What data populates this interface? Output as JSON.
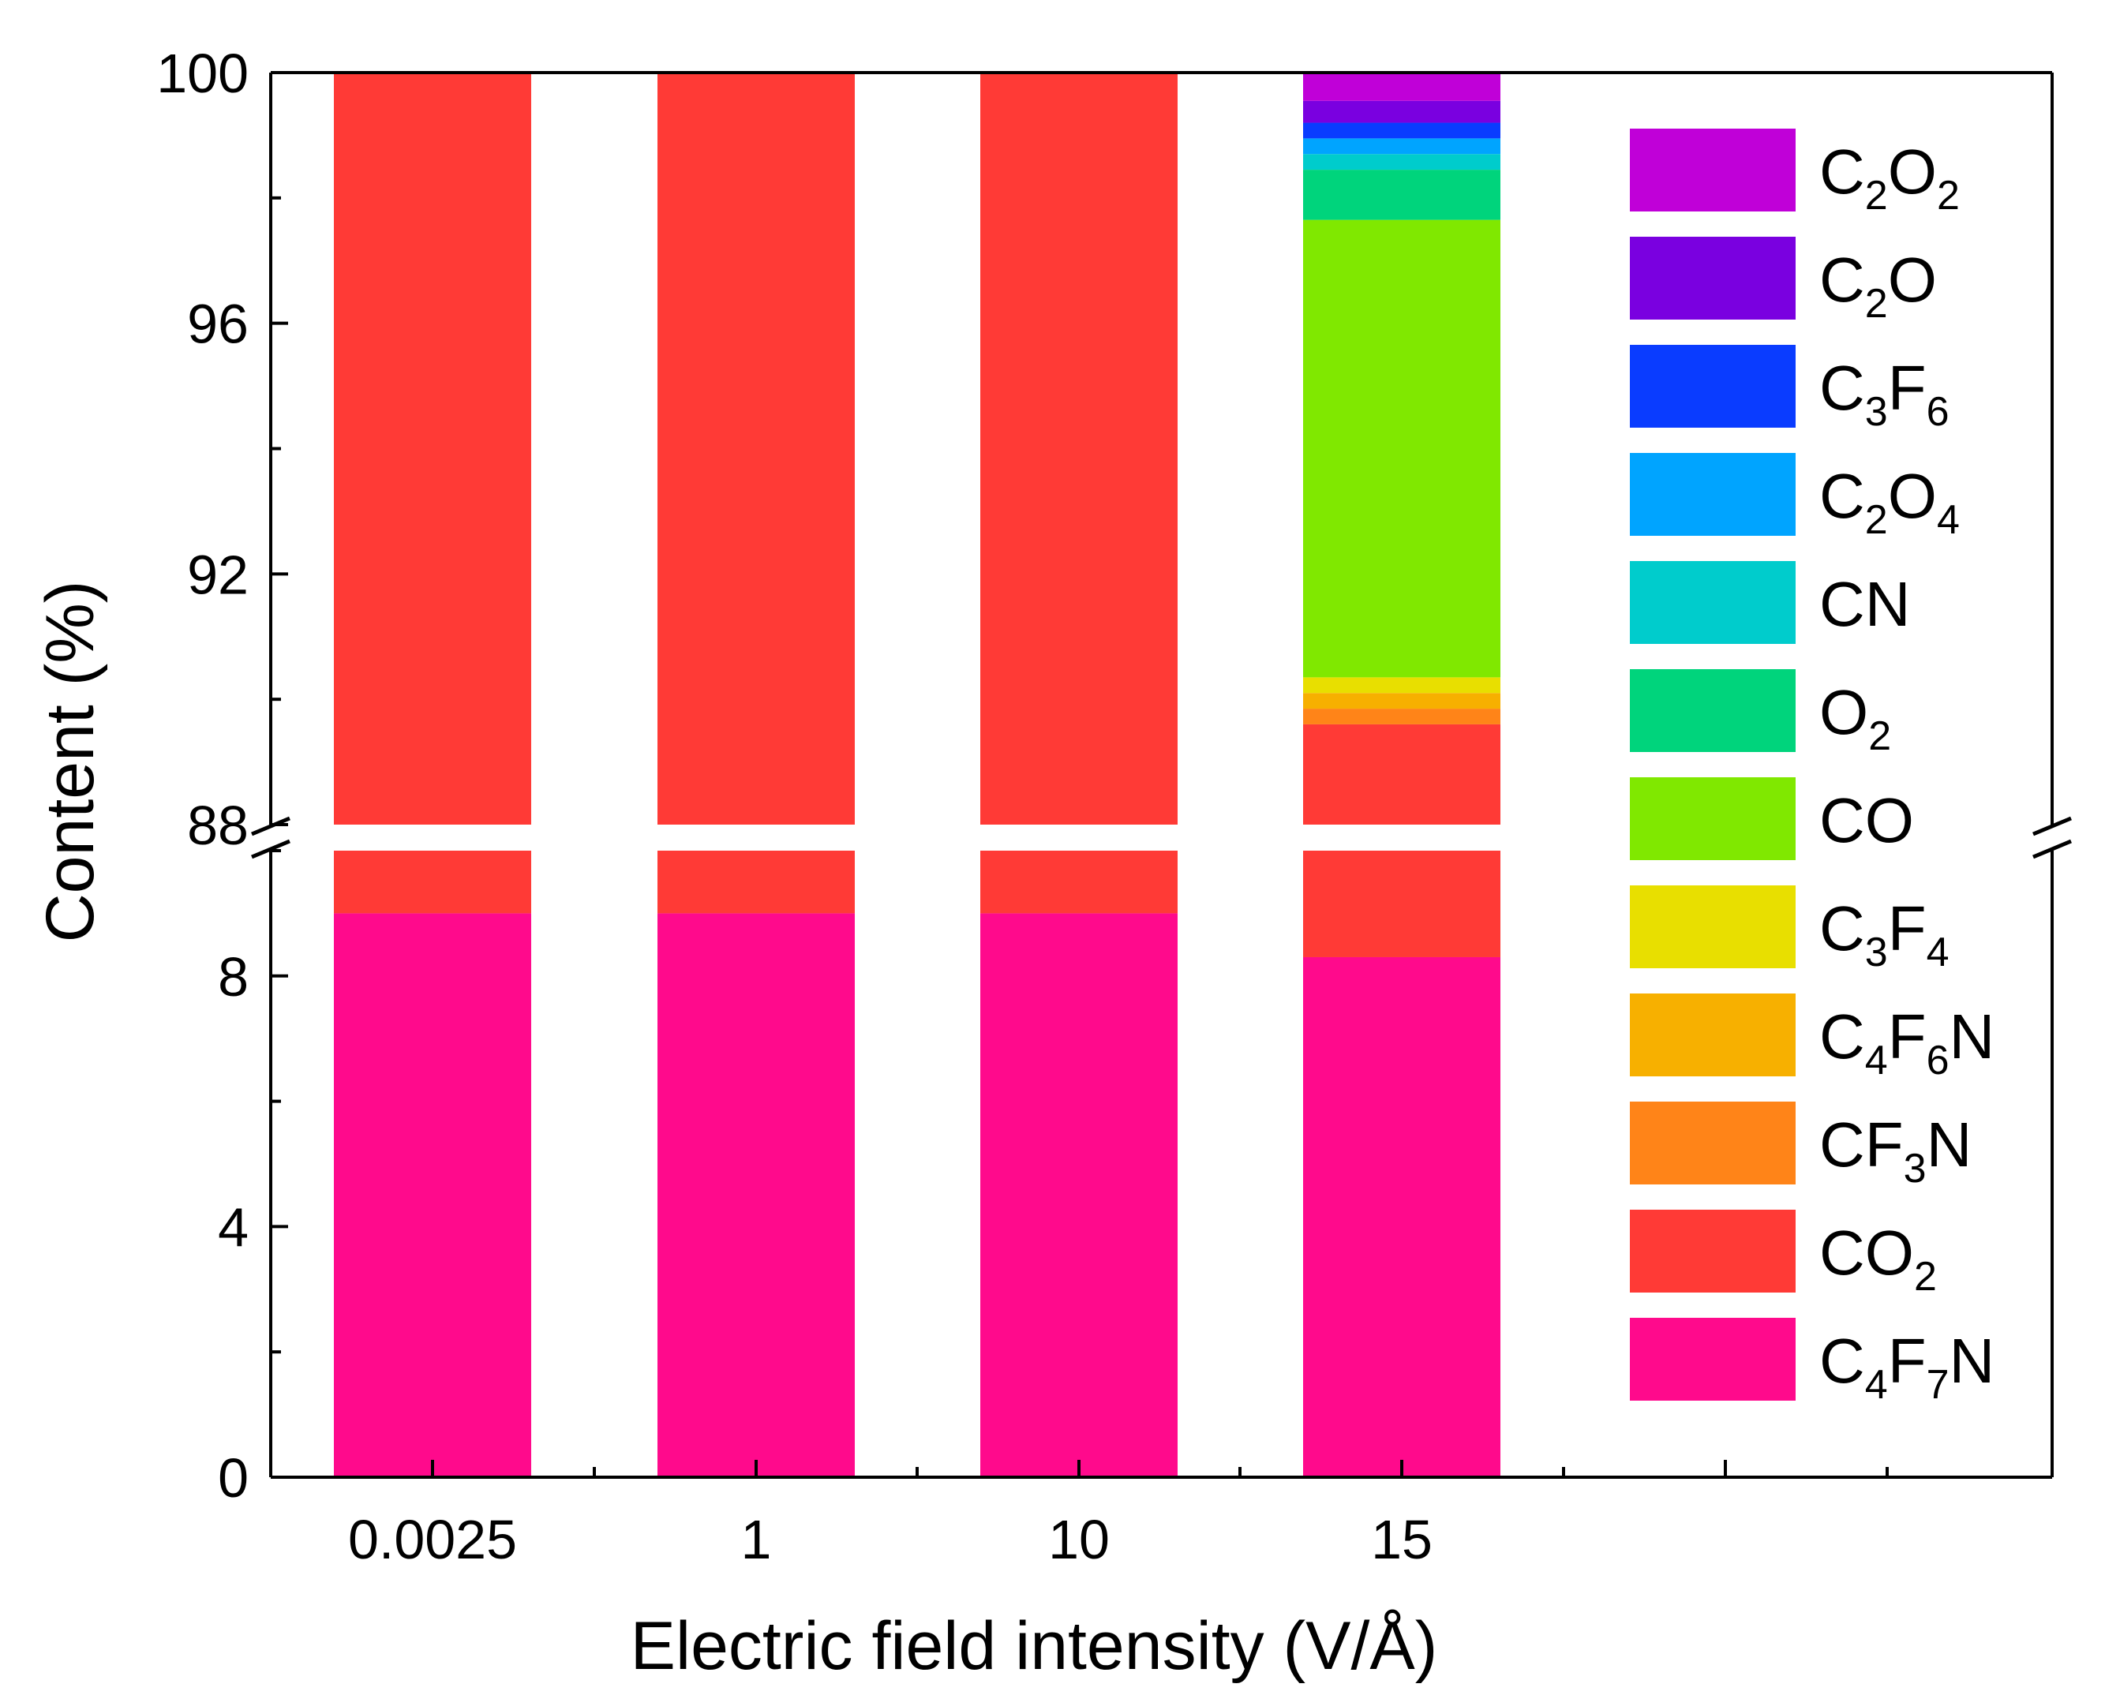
{
  "chart_data": {
    "type": "bar",
    "stacked": true,
    "broken_y_axis": true,
    "categories": [
      "0.0025",
      "1",
      "10",
      "15"
    ],
    "xlabel": "Electric field intensity (V/Å)",
    "ylabel": "Content (%)",
    "y_segments": [
      {
        "range": [
          0,
          10
        ],
        "ticks": [
          0,
          4,
          8
        ],
        "minor_step": 2
      },
      {
        "range": [
          88,
          100
        ],
        "ticks": [
          88,
          92,
          96,
          100
        ],
        "minor_step": 2
      }
    ],
    "legend_position": "right",
    "series": [
      {
        "name": "C4F7N",
        "parts": [
          {
            "t": "C",
            "s": false
          },
          {
            "t": "4",
            "s": true
          },
          {
            "t": "F",
            "s": false
          },
          {
            "t": "7",
            "s": true
          },
          {
            "t": "N",
            "s": false
          }
        ],
        "color": "#ff0a8c",
        "values": [
          9.0,
          9.0,
          9.0,
          8.3
        ]
      },
      {
        "name": "CO2",
        "parts": [
          {
            "t": "CO",
            "s": false
          },
          {
            "t": "2",
            "s": true
          }
        ],
        "color": "#ff3a36",
        "values": [
          91.0,
          91.0,
          91.0,
          81.3
        ]
      },
      {
        "name": "CF3N",
        "parts": [
          {
            "t": "CF",
            "s": false
          },
          {
            "t": "3",
            "s": true
          },
          {
            "t": "N",
            "s": false
          }
        ],
        "color": "#ff8418",
        "values": [
          0,
          0,
          0,
          0.25
        ]
      },
      {
        "name": "C4F6N",
        "parts": [
          {
            "t": "C",
            "s": false
          },
          {
            "t": "4",
            "s": true
          },
          {
            "t": "F",
            "s": false
          },
          {
            "t": "6",
            "s": true
          },
          {
            "t": "N",
            "s": false
          }
        ],
        "color": "#f7b000",
        "values": [
          0,
          0,
          0,
          0.25
        ]
      },
      {
        "name": "C3F4",
        "parts": [
          {
            "t": "C",
            "s": false
          },
          {
            "t": "3",
            "s": true
          },
          {
            "t": "F",
            "s": false
          },
          {
            "t": "4",
            "s": true
          }
        ],
        "color": "#e8df00",
        "values": [
          0,
          0,
          0,
          0.25
        ]
      },
      {
        "name": "CO",
        "parts": [
          {
            "t": "CO",
            "s": false
          }
        ],
        "color": "#80e800",
        "values": [
          0,
          0,
          0,
          7.3
        ]
      },
      {
        "name": "O2",
        "parts": [
          {
            "t": "O",
            "s": false
          },
          {
            "t": "2",
            "s": true
          }
        ],
        "color": "#00d47c",
        "values": [
          0,
          0,
          0,
          0.8
        ]
      },
      {
        "name": "CN",
        "parts": [
          {
            "t": "CN",
            "s": false
          }
        ],
        "color": "#00cccc",
        "values": [
          0,
          0,
          0,
          0.25
        ]
      },
      {
        "name": "C2O4",
        "parts": [
          {
            "t": "C",
            "s": false
          },
          {
            "t": "2",
            "s": true
          },
          {
            "t": "O",
            "s": false
          },
          {
            "t": "4",
            "s": true
          }
        ],
        "color": "#00a4ff",
        "values": [
          0,
          0,
          0,
          0.25
        ]
      },
      {
        "name": "C3F6",
        "parts": [
          {
            "t": "C",
            "s": false
          },
          {
            "t": "3",
            "s": true
          },
          {
            "t": "F",
            "s": false
          },
          {
            "t": "6",
            "s": true
          }
        ],
        "color": "#0a3cff",
        "values": [
          0,
          0,
          0,
          0.25
        ]
      },
      {
        "name": "C2O",
        "parts": [
          {
            "t": "C",
            "s": false
          },
          {
            "t": "2",
            "s": true
          },
          {
            "t": "O",
            "s": false
          }
        ],
        "color": "#7a00e0",
        "values": [
          0,
          0,
          0,
          0.35
        ]
      },
      {
        "name": "C2O2",
        "parts": [
          {
            "t": "C",
            "s": false
          },
          {
            "t": "2",
            "s": true
          },
          {
            "t": "O",
            "s": false
          },
          {
            "t": "2",
            "s": true
          }
        ],
        "color": "#c000d8",
        "values": [
          0,
          0,
          0,
          0.55
        ]
      }
    ]
  }
}
